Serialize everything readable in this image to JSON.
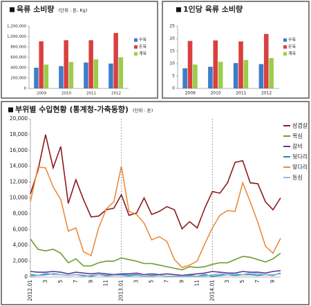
{
  "chart_data": [
    {
      "type": "bar",
      "title": "육류 소비량",
      "subtitle": "(단위 : 톤, Kg)",
      "categories": [
        "2009",
        "2010",
        "2011",
        "2012"
      ],
      "series": [
        {
          "name": "우육",
          "color": "#3d7cc9",
          "values": [
            400000,
            430000,
            500000,
            480000
          ]
        },
        {
          "name": "돈육",
          "color": "#d9403f",
          "values": [
            910000,
            930000,
            930000,
            1070000
          ]
        },
        {
          "name": "계육",
          "color": "#9acd4a",
          "values": [
            460000,
            510000,
            560000,
            600000
          ]
        }
      ],
      "ylim": [
        0,
        1200000
      ],
      "yticks": [
        0,
        {
          "value": 200000,
          "label": "200,000"
        },
        {
          "value": 400000,
          "label": "400,000"
        },
        {
          "value": 600000,
          "label": "600,000"
        },
        {
          "value": 800000,
          "label": "800,000"
        },
        {
          "value": 1000000,
          "label": "1,000,000"
        },
        {
          "value": 1200000,
          "label": "1,200,000"
        }
      ],
      "grid": false,
      "legend": "right"
    },
    {
      "type": "bar",
      "title": "1인당 육류 소비량",
      "categories": [
        "2009",
        "2010",
        "2011",
        "2012"
      ],
      "series": [
        {
          "name": "우육",
          "color": "#3d7cc9",
          "values": [
            8.1,
            8.7,
            10.2,
            9.8
          ]
        },
        {
          "name": "돈육",
          "color": "#d9403f",
          "values": [
            19.1,
            19.3,
            18.9,
            21.9
          ]
        },
        {
          "name": "계육",
          "color": "#9acd4a",
          "values": [
            9.6,
            10.7,
            11.4,
            12.2
          ]
        }
      ],
      "ylim": [
        0,
        25
      ],
      "yticks": [
        0,
        5,
        10,
        15,
        20,
        25
      ],
      "grid": false,
      "legend": "right"
    },
    {
      "type": "line",
      "title": "부위별 수입현황 (통계청-가축동향)",
      "subtitle": "(단위 : 톤)",
      "categories": [
        "2012.01",
        null,
        "3",
        null,
        "5",
        null,
        "7",
        null,
        "9",
        null,
        "11",
        null,
        "2013.01",
        null,
        "3",
        null,
        "5",
        null,
        "7",
        null,
        "9",
        null,
        "11",
        null,
        "2014.01",
        null,
        "3",
        null,
        "5",
        null,
        "7",
        null,
        "9",
        null
      ],
      "series": [
        {
          "name": "삼겹살",
          "color": "#8b1a1a",
          "values": [
            10500,
            13500,
            18000,
            13800,
            16500,
            9300,
            12300,
            9800,
            7600,
            7700,
            8500,
            8700,
            10400,
            7800,
            8100,
            10000,
            7900,
            8300,
            8900,
            8500,
            6100,
            7000,
            6200,
            8700,
            10800,
            10600,
            11900,
            14500,
            14700,
            11900,
            11800,
            9500,
            8500,
            10000
          ]
        },
        {
          "name": "목심",
          "color": "#6f9a2c",
          "values": [
            4800,
            3500,
            3300,
            3500,
            3000,
            1800,
            2300,
            1400,
            1400,
            1800,
            2000,
            2000,
            2400,
            2200,
            2000,
            1700,
            1700,
            1500,
            1300,
            1100,
            900,
            1300,
            1200,
            1300,
            1600,
            1800,
            1800,
            2200,
            2600,
            2500,
            2200,
            1900,
            2300,
            3000
          ]
        },
        {
          "name": "갈비",
          "color": "#5b3a8c",
          "values": [
            700,
            600,
            600,
            700,
            600,
            400,
            600,
            500,
            400,
            500,
            400,
            300,
            400,
            400,
            500,
            300,
            400,
            300,
            400,
            300,
            200,
            300,
            400,
            500,
            700,
            600,
            500,
            500,
            700,
            600,
            600,
            500,
            700,
            800
          ]
        },
        {
          "name": "뒷다리",
          "color": "#1a8ab0",
          "values": [
            300,
            200,
            300,
            400,
            300,
            200,
            300,
            200,
            100,
            300,
            200,
            200,
            300,
            200,
            300,
            100,
            200,
            200,
            100,
            100,
            100,
            200,
            100,
            300,
            100,
            200,
            300,
            200,
            300,
            300,
            200,
            300,
            200,
            500
          ]
        },
        {
          "name": "앞다리",
          "color": "#eb8a3c",
          "values": [
            9500,
            13900,
            13800,
            11400,
            9800,
            5800,
            6200,
            3200,
            2700,
            6200,
            8600,
            9500,
            14000,
            8300,
            7900,
            6800,
            4700,
            5100,
            4500,
            2200,
            1200,
            1500,
            2000,
            4200,
            6200,
            7800,
            8400,
            8300,
            11900,
            9500,
            6900,
            3900,
            3000,
            4900
          ]
        },
        {
          "name": "등심",
          "color": "#8fb8e6",
          "values": [
            100,
            200,
            500,
            300,
            300,
            200,
            300,
            100,
            200,
            300,
            100,
            200,
            200,
            100,
            200,
            100,
            100,
            200,
            100,
            100,
            100,
            100,
            100,
            100,
            300,
            400,
            300,
            400,
            300,
            500,
            400,
            300,
            300,
            400
          ]
        }
      ],
      "ylim": [
        0,
        20000
      ],
      "yticks": [
        0,
        {
          "value": 2000,
          "label": "2,000"
        },
        {
          "value": 4000,
          "label": "4,000"
        },
        {
          "value": 6000,
          "label": "6,000"
        },
        {
          "value": 8000,
          "label": "8,000"
        },
        {
          "value": 10000,
          "label": "10,000"
        },
        {
          "value": 12000,
          "label": "12,000"
        },
        {
          "value": 14000,
          "label": "14,000"
        },
        {
          "value": 16000,
          "label": "16,000"
        },
        {
          "value": 18000,
          "label": "18,000"
        },
        {
          "value": 20000,
          "label": "20,000"
        }
      ],
      "grid": false,
      "legend": "right"
    }
  ]
}
